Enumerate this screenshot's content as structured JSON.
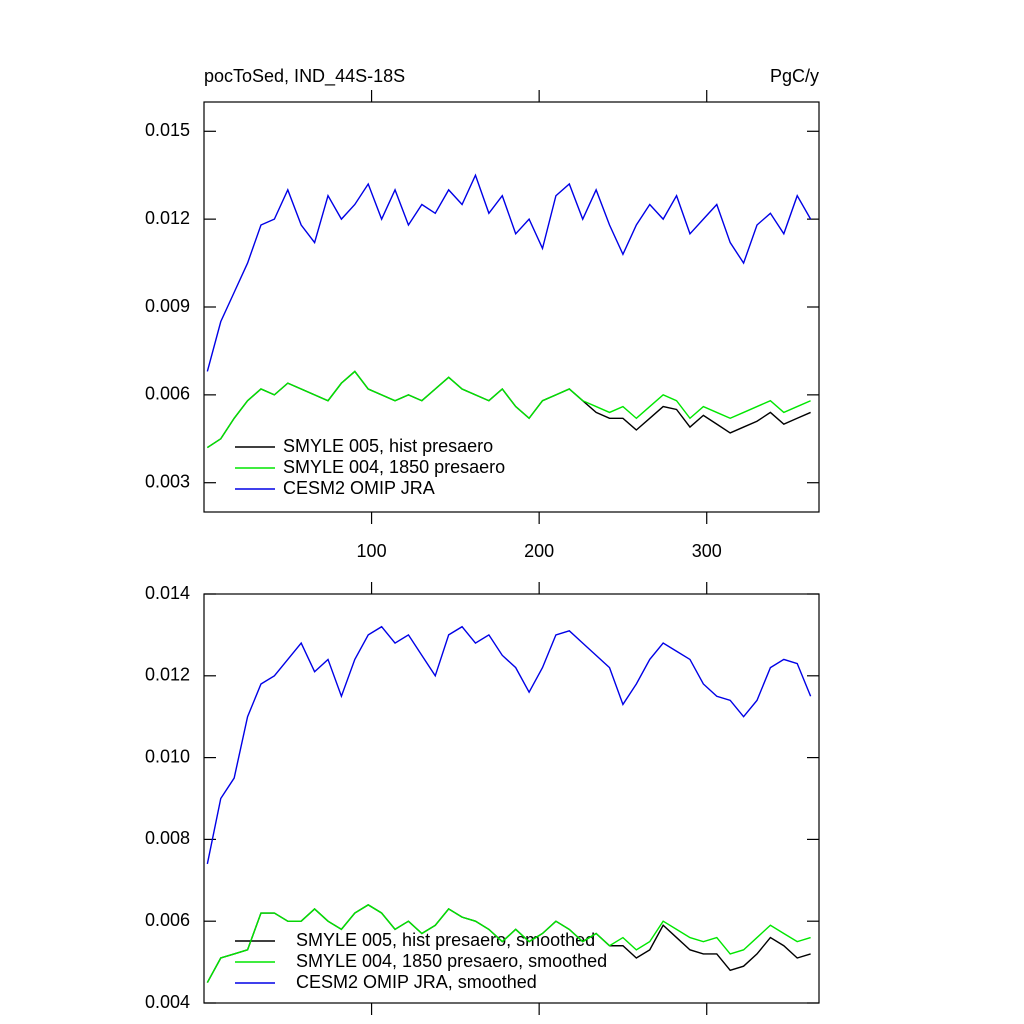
{
  "chart_data": [
    {
      "type": "line",
      "title": "pocToSed, IND_44S-18S",
      "units": "PgC/y",
      "x": [
        2,
        10,
        18,
        26,
        34,
        42,
        50,
        58,
        66,
        74,
        82,
        90,
        98,
        106,
        114,
        122,
        130,
        138,
        146,
        154,
        162,
        170,
        178,
        186,
        194,
        202,
        210,
        218,
        226,
        234,
        242,
        250,
        258,
        266,
        274,
        282,
        290,
        298,
        306,
        314,
        322,
        330,
        338,
        346,
        354,
        362
      ],
      "xlim": [
        0,
        367
      ],
      "xticks": [
        100,
        200,
        300
      ],
      "ylim": [
        0.002,
        0.016
      ],
      "yticks": [
        0.003,
        0.006,
        0.009,
        0.012,
        0.015
      ],
      "series": [
        {
          "name": "SMYLE 005, hist presaero",
          "color": "#000000",
          "values": [
            0.0042,
            0.0045,
            0.0052,
            0.0058,
            0.0062,
            0.006,
            0.0064,
            0.0062,
            0.006,
            0.0058,
            0.0064,
            0.0068,
            0.0062,
            0.006,
            0.0058,
            0.006,
            0.0058,
            0.0062,
            0.0066,
            0.0062,
            0.006,
            0.0058,
            0.0062,
            0.0056,
            0.0052,
            0.0058,
            0.006,
            0.0062,
            0.0058,
            0.0054,
            0.0052,
            0.0052,
            0.0048,
            0.0052,
            0.0056,
            0.0055,
            0.0049,
            0.0053,
            0.005,
            0.0047,
            0.0049,
            0.0051,
            0.0054,
            0.005,
            0.0052,
            0.0054
          ]
        },
        {
          "name": "SMYLE 004, 1850 presaero",
          "color": "#00e600",
          "values": [
            0.0042,
            0.0045,
            0.0052,
            0.0058,
            0.0062,
            0.006,
            0.0064,
            0.0062,
            0.006,
            0.0058,
            0.0064,
            0.0068,
            0.0062,
            0.006,
            0.0058,
            0.006,
            0.0058,
            0.0062,
            0.0066,
            0.0062,
            0.006,
            0.0058,
            0.0062,
            0.0056,
            0.0052,
            0.0058,
            0.006,
            0.0062,
            0.0058,
            0.0056,
            0.0054,
            0.0056,
            0.0052,
            0.0056,
            0.006,
            0.0058,
            0.0052,
            0.0056,
            0.0054,
            0.0052,
            0.0054,
            0.0056,
            0.0058,
            0.0054,
            0.0056,
            0.0058
          ]
        },
        {
          "name": "CESM2 OMIP JRA",
          "color": "#0000e6",
          "values": [
            0.0068,
            0.0085,
            0.0095,
            0.0105,
            0.0118,
            0.012,
            0.013,
            0.0118,
            0.0112,
            0.0128,
            0.012,
            0.0125,
            0.0132,
            0.012,
            0.013,
            0.0118,
            0.0125,
            0.0122,
            0.013,
            0.0125,
            0.0135,
            0.0122,
            0.0128,
            0.0115,
            0.012,
            0.011,
            0.0128,
            0.0132,
            0.012,
            0.013,
            0.0118,
            0.0108,
            0.0118,
            0.0125,
            0.012,
            0.0128,
            0.0115,
            0.012,
            0.0125,
            0.0112,
            0.0105,
            0.0118,
            0.0122,
            0.0115,
            0.0128,
            0.012
          ]
        }
      ]
    },
    {
      "type": "line",
      "x": [
        2,
        10,
        18,
        26,
        34,
        42,
        50,
        58,
        66,
        74,
        82,
        90,
        98,
        106,
        114,
        122,
        130,
        138,
        146,
        154,
        162,
        170,
        178,
        186,
        194,
        202,
        210,
        218,
        226,
        234,
        242,
        250,
        258,
        266,
        274,
        282,
        290,
        298,
        306,
        314,
        322,
        330,
        338,
        346,
        354,
        362
      ],
      "xlim": [
        0,
        367
      ],
      "xticks": [
        100,
        200,
        300
      ],
      "ylim": [
        0.004,
        0.014
      ],
      "yticks": [
        0.004,
        0.006,
        0.008,
        {
          "value": 0.01,
          "label": "0.010"
        },
        0.012,
        0.014
      ],
      "series": [
        {
          "name": "SMYLE 005, hist presaero, smoothed",
          "color": "#000000",
          "values": [
            0.0045,
            0.0051,
            0.0052,
            0.0053,
            0.0062,
            0.0062,
            0.006,
            0.006,
            0.0063,
            0.006,
            0.0058,
            0.0062,
            0.0064,
            0.0062,
            0.0058,
            0.006,
            0.0057,
            0.0059,
            0.0063,
            0.0061,
            0.006,
            0.0058,
            0.0055,
            0.0058,
            0.0055,
            0.0057,
            0.006,
            0.0058,
            0.0055,
            0.0057,
            0.0054,
            0.0054,
            0.0051,
            0.0053,
            0.0059,
            0.0056,
            0.0053,
            0.0052,
            0.0052,
            0.0048,
            0.0049,
            0.0052,
            0.0056,
            0.0054,
            0.0051,
            0.0052
          ]
        },
        {
          "name": "SMYLE 004, 1850 presaero, smoothed",
          "color": "#00e600",
          "values": [
            0.0045,
            0.0051,
            0.0052,
            0.0053,
            0.0062,
            0.0062,
            0.006,
            0.006,
            0.0063,
            0.006,
            0.0058,
            0.0062,
            0.0064,
            0.0062,
            0.0058,
            0.006,
            0.0057,
            0.0059,
            0.0063,
            0.0061,
            0.006,
            0.0058,
            0.0055,
            0.0058,
            0.0055,
            0.0057,
            0.006,
            0.0058,
            0.0055,
            0.0057,
            0.0054,
            0.0056,
            0.0053,
            0.0055,
            0.006,
            0.0058,
            0.0056,
            0.0055,
            0.0056,
            0.0052,
            0.0053,
            0.0056,
            0.0059,
            0.0057,
            0.0055,
            0.0056
          ]
        },
        {
          "name": "CESM2 OMIP JRA, smoothed",
          "color": "#0000e6",
          "values": [
            0.0074,
            0.009,
            0.0095,
            0.011,
            0.0118,
            0.012,
            0.0124,
            0.0128,
            0.0121,
            0.0124,
            0.0115,
            0.0124,
            0.013,
            0.0132,
            0.0128,
            0.013,
            0.0125,
            0.012,
            0.013,
            0.0132,
            0.0128,
            0.013,
            0.0125,
            0.0122,
            0.0116,
            0.0122,
            0.013,
            0.0131,
            0.0128,
            0.0125,
            0.0122,
            0.0113,
            0.0118,
            0.0124,
            0.0128,
            0.0126,
            0.0124,
            0.0118,
            0.0115,
            0.0114,
            0.011,
            0.0114,
            0.0122,
            0.0124,
            0.0123,
            0.0115
          ]
        }
      ]
    }
  ]
}
